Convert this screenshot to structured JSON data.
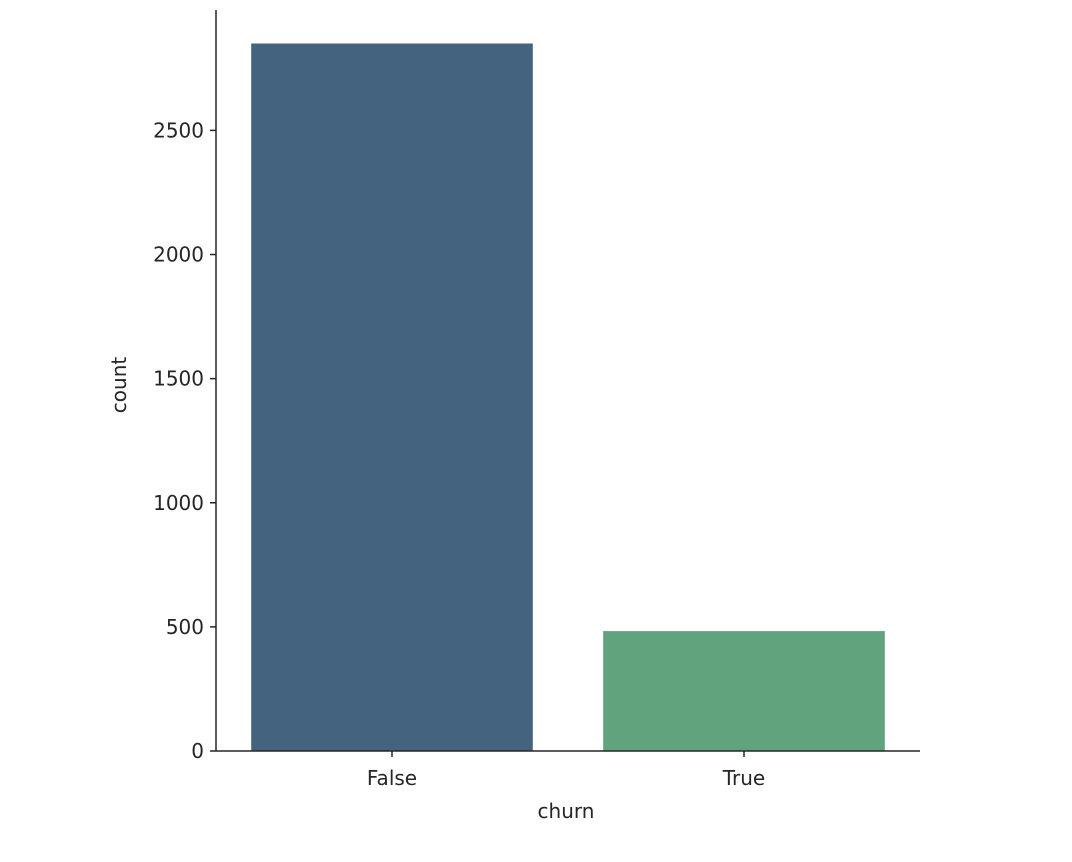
{
  "chart_data": {
    "type": "bar",
    "categories": [
      "False",
      "True"
    ],
    "values": [
      2850,
      483
    ],
    "colors": [
      "#44637e",
      "#60a37c"
    ],
    "title": "",
    "xlabel": "churn",
    "ylabel": "count",
    "ylim": [
      0,
      2985
    ],
    "yticks": [
      0,
      500,
      1000,
      1500,
      2000,
      2500
    ],
    "ytick_labels": [
      "0",
      "500",
      "1000",
      "1500",
      "2000",
      "2500"
    ],
    "grid": false,
    "legend": "none"
  }
}
